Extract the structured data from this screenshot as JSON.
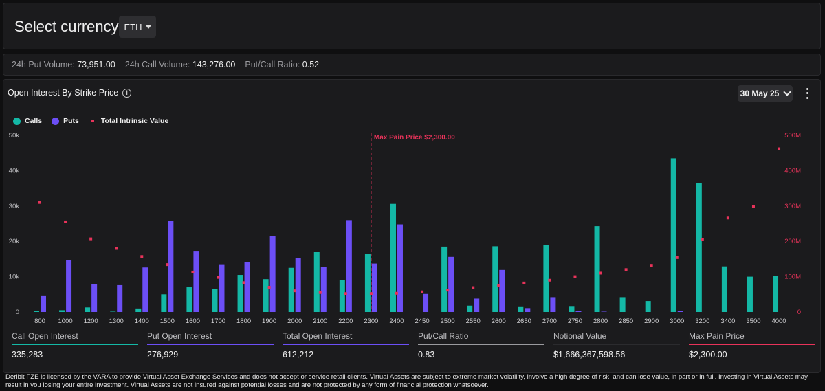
{
  "header": {
    "select_label": "Select currency:",
    "currency": "ETH"
  },
  "volumes": {
    "put_label": "24h Put Volume:",
    "put_value": "73,951.00",
    "call_label": "24h Call Volume:",
    "call_value": "143,276.00",
    "ratio_label": "Put/Call Ratio:",
    "ratio_value": "0.52"
  },
  "panel": {
    "title": "Open Interest By Strike Price",
    "date": "30 May 25"
  },
  "legend": {
    "calls": "Calls",
    "puts": "Puts",
    "intrinsic": "Total Intrinsic Value"
  },
  "colors": {
    "calls": "#14b8a6",
    "puts": "#6c4ff6",
    "intrinsic": "#e8335a"
  },
  "chart_data": {
    "type": "bar",
    "categories": [
      "800",
      "1000",
      "1200",
      "1300",
      "1400",
      "1500",
      "1600",
      "1700",
      "1800",
      "1900",
      "2000",
      "2100",
      "2200",
      "2300",
      "2400",
      "2450",
      "2500",
      "2550",
      "2600",
      "2650",
      "2700",
      "2750",
      "2800",
      "2850",
      "2900",
      "3000",
      "3200",
      "3400",
      "3500",
      "4000"
    ],
    "series": [
      {
        "name": "Calls",
        "axis": "left",
        "values": [
          200,
          500,
          1300,
          100,
          1000,
          5000,
          7000,
          6500,
          10500,
          9300,
          12500,
          17000,
          9100,
          16500,
          30600,
          0,
          18500,
          1800,
          18600,
          1400,
          19000,
          1500,
          24300,
          4200,
          3100,
          43500,
          36500,
          12900,
          10000,
          10300
        ]
      },
      {
        "name": "Puts",
        "axis": "left",
        "values": [
          4500,
          14700,
          7800,
          7600,
          12600,
          25800,
          17300,
          13500,
          14100,
          21400,
          15200,
          12700,
          26000,
          13700,
          24800,
          5100,
          15600,
          3800,
          11900,
          1100,
          4200,
          200,
          100,
          0,
          0,
          200,
          0,
          0,
          0,
          0
        ]
      },
      {
        "name": "Total Intrinsic Value",
        "axis": "right",
        "type": "scatter",
        "values": [
          310000000,
          255000000,
          207000000,
          180000000,
          157000000,
          134000000,
          113000000,
          98000000,
          83000000,
          70000000,
          60000000,
          55000000,
          52000000,
          52000000,
          53000000,
          57000000,
          62000000,
          69000000,
          74000000,
          82000000,
          90000000,
          100000000,
          110000000,
          120000000,
          132000000,
          154000000,
          206000000,
          266000000,
          298000000,
          462000000
        ]
      }
    ],
    "y_left": {
      "ylim": [
        0,
        50000
      ],
      "ticks": [
        "0",
        "10k",
        "20k",
        "30k",
        "40k",
        "50k"
      ]
    },
    "y_right": {
      "ylim": [
        0,
        500000000
      ],
      "ticks": [
        "0",
        "100M",
        "200M",
        "300M",
        "400M",
        "500M"
      ]
    },
    "annotation": {
      "label": "Max Pain Price $2,300.00",
      "x": "2300"
    },
    "grid": false,
    "legend_position": "top-left"
  },
  "stats": [
    {
      "label": "Call Open Interest",
      "value": "335,283",
      "color": "#14b8a6"
    },
    {
      "label": "Put Open Interest",
      "value": "276,929",
      "color": "#6c4ff6"
    },
    {
      "label": "Total Open Interest",
      "value": "612,212",
      "color": "#6c4ff6"
    },
    {
      "label": "Put/Call Ratio",
      "value": "0.83",
      "color": "#9a9a9e"
    },
    {
      "label": "Notional Value",
      "value": "$1,666,367,598.56",
      "color": "#2b2b2e"
    },
    {
      "label": "Max Pain Price",
      "value": "$2,300.00",
      "color": "#e8335a"
    }
  ],
  "footer": "Deribit FZE is licensed by the VARA to provide Virtual Asset Exchange Services and does not accept or service retail clients. Virtual Assets are subject to extreme market volatility, involve a high degree of risk, and can lose value, in part or in full. Investing in Virtual Assets may result in you losing your entire investment. Virtual Assets are not insured against potential losses and are not protected by any form of financial protection whatsoever."
}
